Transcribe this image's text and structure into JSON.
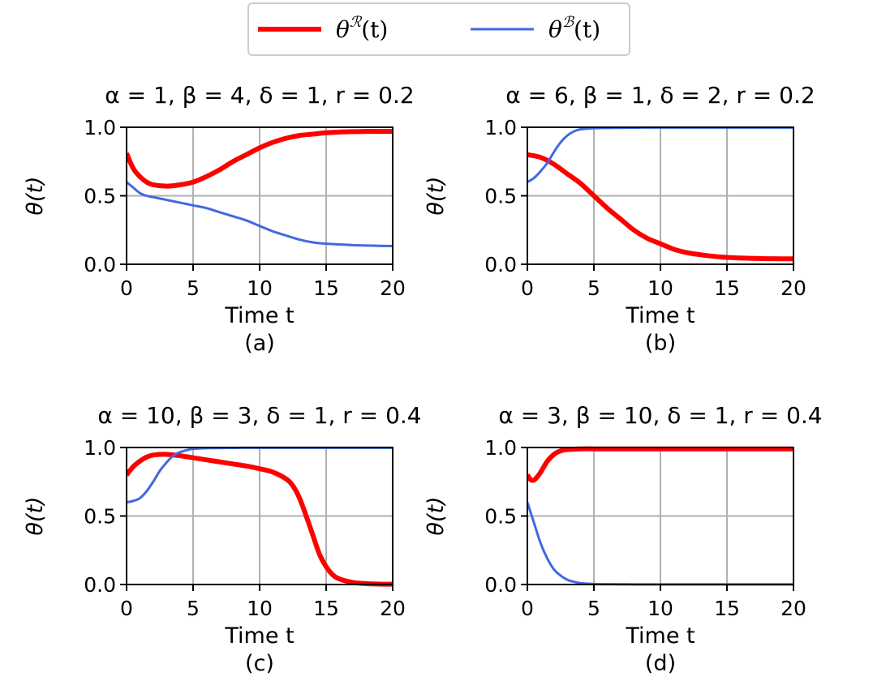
{
  "legend": {
    "entries": [
      {
        "label": "θ^ℛ(t)",
        "base": "θ",
        "sup": "ℛ",
        "arg": "(t)",
        "color": "#ff0000"
      },
      {
        "label": "θ^ℬ(t)",
        "base": "θ",
        "sup": "ℬ",
        "arg": "(t)",
        "color": "#4169e1"
      }
    ]
  },
  "chart_data": [
    {
      "type": "line",
      "panel": "(a)",
      "title": "α = 1, β = 4, δ = 1, r = 0.2",
      "xlabel": "Time t",
      "ylabel": "θ(t)",
      "xlim": [
        0,
        20
      ],
      "ylim": [
        0,
        1
      ],
      "xticks": [
        "0",
        "5",
        "10",
        "15",
        "20"
      ],
      "yticks": [
        "0.0",
        "0.5",
        "1.0"
      ],
      "xtick_values": [
        0,
        5,
        10,
        15,
        20
      ],
      "ytick_values": [
        0,
        0.5,
        1
      ],
      "grid": true,
      "series": [
        {
          "name": "θ^ℛ(t)",
          "color": "#ff0000",
          "x": [
            0,
            0.5,
            1,
            1.5,
            2,
            3,
            4,
            5,
            6,
            7,
            8,
            9,
            10,
            11,
            12,
            13,
            14,
            15,
            16,
            17,
            18,
            19,
            20
          ],
          "y": [
            0.81,
            0.7,
            0.64,
            0.6,
            0.58,
            0.57,
            0.58,
            0.6,
            0.64,
            0.69,
            0.75,
            0.8,
            0.85,
            0.89,
            0.92,
            0.94,
            0.95,
            0.96,
            0.965,
            0.968,
            0.97,
            0.97,
            0.97
          ]
        },
        {
          "name": "θ^ℬ(t)",
          "color": "#4169e1",
          "x": [
            0,
            0.5,
            1,
            1.5,
            2,
            3,
            4,
            5,
            6,
            7,
            8,
            9,
            10,
            11,
            12,
            13,
            14,
            15,
            16,
            17,
            18,
            19,
            20
          ],
          "y": [
            0.6,
            0.56,
            0.52,
            0.5,
            0.49,
            0.47,
            0.45,
            0.43,
            0.41,
            0.38,
            0.35,
            0.32,
            0.28,
            0.24,
            0.21,
            0.18,
            0.16,
            0.15,
            0.145,
            0.14,
            0.137,
            0.135,
            0.133
          ]
        }
      ]
    },
    {
      "type": "line",
      "panel": "(b)",
      "title": "α = 6, β = 1, δ = 2, r = 0.2",
      "xlabel": "Time t",
      "ylabel": "θ(t)",
      "xlim": [
        0,
        20
      ],
      "ylim": [
        0,
        1
      ],
      "xticks": [
        "0",
        "5",
        "10",
        "15",
        "20"
      ],
      "yticks": [
        "0.0",
        "0.5",
        "1.0"
      ],
      "xtick_values": [
        0,
        5,
        10,
        15,
        20
      ],
      "ytick_values": [
        0,
        0.5,
        1
      ],
      "grid": true,
      "series": [
        {
          "name": "θ^ℛ(t)",
          "color": "#ff0000",
          "x": [
            0,
            1,
            2,
            3,
            4,
            5,
            6,
            7,
            8,
            9,
            10,
            11,
            12,
            13,
            14,
            15,
            16,
            17,
            18,
            19,
            20
          ],
          "y": [
            0.8,
            0.78,
            0.73,
            0.66,
            0.59,
            0.5,
            0.41,
            0.33,
            0.25,
            0.19,
            0.15,
            0.11,
            0.085,
            0.07,
            0.058,
            0.05,
            0.046,
            0.043,
            0.041,
            0.04,
            0.04
          ]
        },
        {
          "name": "θ^ℬ(t)",
          "color": "#4169e1",
          "x": [
            0,
            0.5,
            1,
            1.5,
            2,
            2.5,
            3,
            3.5,
            4,
            5,
            6,
            8,
            10,
            12,
            15,
            20
          ],
          "y": [
            0.6,
            0.63,
            0.68,
            0.74,
            0.82,
            0.89,
            0.94,
            0.97,
            0.985,
            0.993,
            0.995,
            0.997,
            0.998,
            0.998,
            0.998,
            0.998
          ]
        }
      ]
    },
    {
      "type": "line",
      "panel": "(c)",
      "title": "α = 10, β = 3, δ = 1, r = 0.4",
      "xlabel": "Time t",
      "ylabel": "θ(t)",
      "xlim": [
        0,
        20
      ],
      "ylim": [
        0,
        1
      ],
      "xticks": [
        "0",
        "5",
        "10",
        "15",
        "20"
      ],
      "yticks": [
        "0.0",
        "0.5",
        "1.0"
      ],
      "xtick_values": [
        0,
        5,
        10,
        15,
        20
      ],
      "ytick_values": [
        0,
        0.5,
        1
      ],
      "grid": true,
      "series": [
        {
          "name": "θ^ℛ(t)",
          "color": "#ff0000",
          "x": [
            0,
            0.5,
            1,
            1.5,
            2,
            3,
            4,
            5,
            6,
            7,
            8,
            9,
            10,
            11,
            12,
            12.5,
            13,
            13.5,
            14,
            14.5,
            15,
            15.5,
            16,
            17,
            18,
            19,
            20
          ],
          "y": [
            0.8,
            0.86,
            0.9,
            0.93,
            0.945,
            0.95,
            0.94,
            0.925,
            0.91,
            0.895,
            0.88,
            0.865,
            0.845,
            0.82,
            0.77,
            0.72,
            0.63,
            0.5,
            0.36,
            0.22,
            0.13,
            0.07,
            0.04,
            0.015,
            0.007,
            0.003,
            0.002
          ]
        },
        {
          "name": "θ^ℬ(t)",
          "color": "#4169e1",
          "x": [
            0,
            0.5,
            1,
            1.5,
            2,
            2.5,
            3,
            3.5,
            4,
            4.5,
            5,
            6,
            8,
            10,
            15,
            20
          ],
          "y": [
            0.6,
            0.61,
            0.63,
            0.68,
            0.75,
            0.83,
            0.89,
            0.94,
            0.965,
            0.98,
            0.99,
            0.995,
            0.997,
            0.998,
            0.998,
            0.998
          ]
        }
      ]
    },
    {
      "type": "line",
      "panel": "(d)",
      "title": "α = 3, β = 10, δ = 1, r = 0.4",
      "xlabel": "Time t",
      "ylabel": "θ(t)",
      "xlim": [
        0,
        20
      ],
      "ylim": [
        0,
        1
      ],
      "xticks": [
        "0",
        "5",
        "10",
        "15",
        "20"
      ],
      "yticks": [
        "0.0",
        "0.5",
        "1.0"
      ],
      "xtick_values": [
        0,
        5,
        10,
        15,
        20
      ],
      "ytick_values": [
        0,
        0.5,
        1
      ],
      "grid": true,
      "series": [
        {
          "name": "θ^ℛ(t)",
          "color": "#ff0000",
          "x": [
            0,
            0.2,
            0.4,
            0.6,
            1,
            1.5,
            2,
            2.5,
            3,
            4,
            5,
            6,
            8,
            10,
            15,
            20
          ],
          "y": [
            0.8,
            0.77,
            0.76,
            0.77,
            0.82,
            0.9,
            0.95,
            0.975,
            0.985,
            0.99,
            0.99,
            0.99,
            0.99,
            0.99,
            0.99,
            0.99
          ]
        },
        {
          "name": "θ^ℬ(t)",
          "color": "#4169e1",
          "x": [
            0,
            0.5,
            1,
            1.5,
            2,
            2.5,
            3,
            3.5,
            4,
            5,
            6,
            8,
            10,
            15,
            20
          ],
          "y": [
            0.6,
            0.45,
            0.3,
            0.19,
            0.11,
            0.065,
            0.035,
            0.02,
            0.01,
            0.004,
            0.002,
            0.001,
            0.001,
            0.001,
            0.001
          ]
        }
      ]
    }
  ]
}
